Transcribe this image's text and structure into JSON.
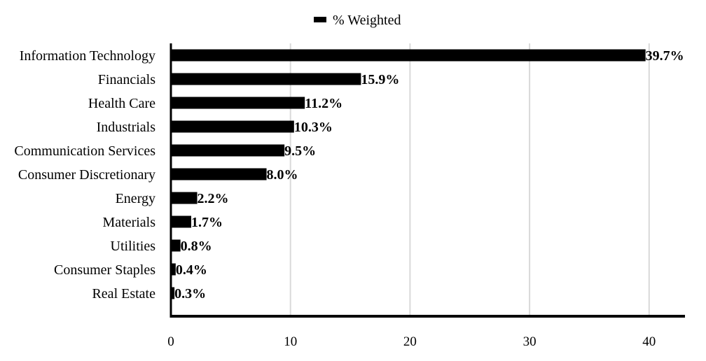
{
  "chart_data": {
    "type": "bar",
    "orientation": "horizontal",
    "categories": [
      "Information Technology",
      "Financials",
      "Health Care",
      "Industrials",
      "Communication Services",
      "Consumer Discretionary",
      "Energy",
      "Materials",
      "Utilities",
      "Consumer Staples",
      "Real Estate"
    ],
    "series": [
      {
        "name": "% Weighted",
        "color": "#000000",
        "values": [
          39.7,
          15.9,
          11.2,
          10.3,
          9.5,
          8.0,
          2.2,
          1.7,
          0.8,
          0.4,
          0.3
        ],
        "data_labels": [
          "39.7%",
          "15.9%",
          "11.2%",
          "10.3%",
          "9.5%",
          "8.0%",
          "2.2%",
          "1.7%",
          "0.8%",
          "0.4%",
          "0.3%"
        ]
      }
    ],
    "xlim": [
      0,
      43
    ],
    "xticks": [
      0,
      10,
      20,
      30,
      40
    ],
    "grid": "vertical",
    "legend": "top-center",
    "title": "",
    "xlabel": "",
    "ylabel": ""
  }
}
